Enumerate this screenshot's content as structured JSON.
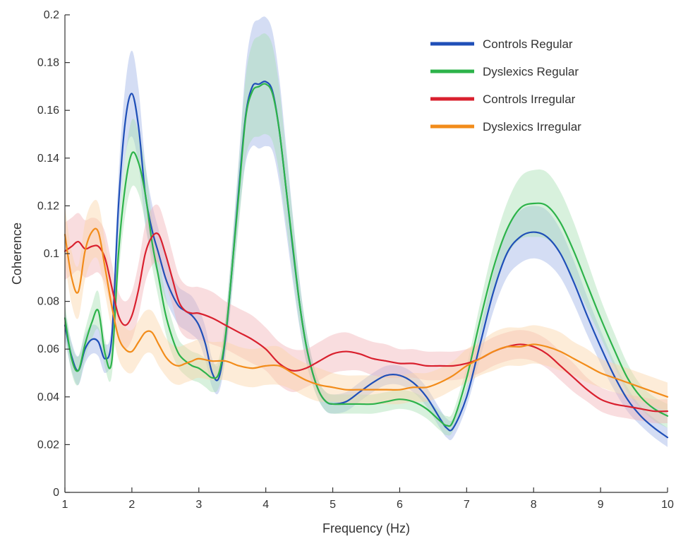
{
  "chart_data": {
    "type": "line",
    "title": "",
    "xlabel": "Frequency (Hz)",
    "ylabel": "Coherence",
    "xlim": [
      1,
      10
    ],
    "ylim": [
      0,
      0.2
    ],
    "xticks": [
      1,
      2,
      3,
      4,
      5,
      6,
      7,
      8,
      9,
      10
    ],
    "yticks": [
      0,
      0.02,
      0.04,
      0.06,
      0.08,
      0.1,
      0.12,
      0.14,
      0.16,
      0.18,
      0.2
    ],
    "xtick_labels": [
      "1",
      "2",
      "3",
      "4",
      "5",
      "6",
      "7",
      "8",
      "9",
      "10"
    ],
    "ytick_labels": [
      "0",
      "0.02",
      "0.04",
      "0.06",
      "0.08",
      "0.1",
      "0.12",
      "0.14",
      "0.16",
      "0.18",
      "0.2"
    ],
    "grid": false,
    "legend_position": "top-right",
    "series": [
      {
        "name": "Controls Regular",
        "color": "#1f4fb8",
        "band_color": "#9fb3e6",
        "x": [
          1.0,
          1.1,
          1.2,
          1.3,
          1.4,
          1.5,
          1.6,
          1.7,
          1.8,
          1.9,
          2.0,
          2.1,
          2.2,
          2.3,
          2.4,
          2.5,
          2.6,
          2.7,
          2.8,
          2.9,
          3.0,
          3.1,
          3.2,
          3.3,
          3.4,
          3.5,
          3.6,
          3.7,
          3.8,
          3.9,
          4.0,
          4.1,
          4.2,
          4.3,
          4.4,
          4.5,
          4.6,
          4.7,
          4.8,
          4.9,
          5.0,
          5.2,
          5.4,
          5.6,
          5.8,
          6.0,
          6.2,
          6.4,
          6.6,
          6.7,
          6.8,
          7.0,
          7.2,
          7.4,
          7.6,
          7.8,
          8.0,
          8.2,
          8.4,
          8.6,
          8.8,
          9.0,
          9.2,
          9.4,
          9.6,
          9.8,
          10.0
        ],
        "y": [
          0.07,
          0.057,
          0.051,
          0.06,
          0.064,
          0.063,
          0.056,
          0.065,
          0.12,
          0.155,
          0.167,
          0.153,
          0.125,
          0.11,
          0.1,
          0.09,
          0.083,
          0.078,
          0.076,
          0.074,
          0.07,
          0.062,
          0.05,
          0.048,
          0.065,
          0.095,
          0.128,
          0.158,
          0.17,
          0.171,
          0.172,
          0.168,
          0.152,
          0.128,
          0.103,
          0.08,
          0.062,
          0.05,
          0.042,
          0.038,
          0.037,
          0.038,
          0.042,
          0.046,
          0.049,
          0.049,
          0.046,
          0.04,
          0.031,
          0.027,
          0.027,
          0.04,
          0.062,
          0.084,
          0.1,
          0.107,
          0.109,
          0.107,
          0.1,
          0.088,
          0.074,
          0.061,
          0.049,
          0.039,
          0.032,
          0.027,
          0.023
        ],
        "err": [
          0.006,
          0.006,
          0.006,
          0.006,
          0.006,
          0.006,
          0.006,
          0.006,
          0.012,
          0.015,
          0.018,
          0.016,
          0.013,
          0.011,
          0.01,
          0.009,
          0.008,
          0.008,
          0.008,
          0.008,
          0.007,
          0.007,
          0.006,
          0.006,
          0.008,
          0.01,
          0.013,
          0.02,
          0.025,
          0.027,
          0.027,
          0.025,
          0.022,
          0.018,
          0.014,
          0.01,
          0.007,
          0.005,
          0.004,
          0.004,
          0.004,
          0.004,
          0.004,
          0.004,
          0.004,
          0.004,
          0.004,
          0.004,
          0.004,
          0.004,
          0.004,
          0.004,
          0.006,
          0.008,
          0.01,
          0.011,
          0.011,
          0.011,
          0.01,
          0.009,
          0.008,
          0.007,
          0.006,
          0.005,
          0.004,
          0.004,
          0.004
        ]
      },
      {
        "name": "Dyslexics Regular",
        "color": "#2db34a",
        "band_color": "#a8dfb4",
        "x": [
          1.0,
          1.1,
          1.2,
          1.3,
          1.4,
          1.5,
          1.6,
          1.7,
          1.8,
          1.9,
          2.0,
          2.1,
          2.2,
          2.3,
          2.4,
          2.5,
          2.6,
          2.7,
          2.8,
          2.9,
          3.0,
          3.1,
          3.2,
          3.3,
          3.4,
          3.5,
          3.6,
          3.7,
          3.8,
          3.9,
          4.0,
          4.1,
          4.2,
          4.3,
          4.4,
          4.5,
          4.6,
          4.7,
          4.8,
          4.9,
          5.0,
          5.2,
          5.4,
          5.6,
          5.8,
          6.0,
          6.2,
          6.4,
          6.6,
          6.7,
          6.8,
          7.0,
          7.2,
          7.4,
          7.6,
          7.8,
          8.0,
          8.2,
          8.4,
          8.6,
          8.8,
          9.0,
          9.2,
          9.4,
          9.6,
          9.8,
          10.0
        ],
        "y": [
          0.073,
          0.056,
          0.051,
          0.062,
          0.071,
          0.076,
          0.058,
          0.055,
          0.1,
          0.128,
          0.142,
          0.138,
          0.125,
          0.105,
          0.09,
          0.075,
          0.065,
          0.058,
          0.055,
          0.053,
          0.052,
          0.05,
          0.048,
          0.05,
          0.066,
          0.095,
          0.126,
          0.157,
          0.168,
          0.17,
          0.171,
          0.167,
          0.152,
          0.128,
          0.104,
          0.08,
          0.062,
          0.05,
          0.042,
          0.038,
          0.037,
          0.037,
          0.037,
          0.037,
          0.038,
          0.039,
          0.038,
          0.035,
          0.03,
          0.028,
          0.03,
          0.048,
          0.072,
          0.094,
          0.11,
          0.119,
          0.121,
          0.12,
          0.113,
          0.101,
          0.087,
          0.073,
          0.06,
          0.048,
          0.04,
          0.035,
          0.032
        ],
        "err": [
          0.006,
          0.006,
          0.006,
          0.006,
          0.007,
          0.008,
          0.006,
          0.006,
          0.01,
          0.012,
          0.014,
          0.013,
          0.012,
          0.01,
          0.009,
          0.008,
          0.007,
          0.006,
          0.006,
          0.006,
          0.006,
          0.006,
          0.006,
          0.006,
          0.008,
          0.01,
          0.013,
          0.017,
          0.02,
          0.021,
          0.021,
          0.02,
          0.018,
          0.015,
          0.012,
          0.009,
          0.007,
          0.005,
          0.004,
          0.004,
          0.004,
          0.004,
          0.004,
          0.004,
          0.004,
          0.004,
          0.004,
          0.004,
          0.004,
          0.004,
          0.004,
          0.005,
          0.007,
          0.009,
          0.011,
          0.013,
          0.014,
          0.014,
          0.013,
          0.012,
          0.01,
          0.008,
          0.007,
          0.006,
          0.005,
          0.005,
          0.005
        ]
      },
      {
        "name": "Controls Irregular",
        "color": "#d9202e",
        "band_color": "#f2b4b8",
        "x": [
          1.0,
          1.1,
          1.2,
          1.3,
          1.4,
          1.5,
          1.6,
          1.7,
          1.8,
          1.9,
          2.0,
          2.1,
          2.2,
          2.3,
          2.4,
          2.5,
          2.6,
          2.7,
          2.8,
          2.9,
          3.0,
          3.2,
          3.4,
          3.6,
          3.8,
          4.0,
          4.2,
          4.4,
          4.6,
          4.8,
          5.0,
          5.2,
          5.4,
          5.6,
          5.8,
          6.0,
          6.2,
          6.4,
          6.6,
          6.8,
          7.0,
          7.2,
          7.4,
          7.6,
          7.8,
          8.0,
          8.2,
          8.4,
          8.6,
          8.8,
          9.0,
          9.2,
          9.4,
          9.6,
          9.8,
          10.0
        ],
        "y": [
          0.101,
          0.103,
          0.105,
          0.102,
          0.103,
          0.103,
          0.098,
          0.086,
          0.074,
          0.07,
          0.074,
          0.085,
          0.1,
          0.107,
          0.108,
          0.1,
          0.09,
          0.08,
          0.076,
          0.075,
          0.075,
          0.073,
          0.07,
          0.067,
          0.064,
          0.06,
          0.054,
          0.051,
          0.052,
          0.055,
          0.058,
          0.059,
          0.058,
          0.056,
          0.055,
          0.054,
          0.054,
          0.053,
          0.053,
          0.053,
          0.054,
          0.056,
          0.059,
          0.061,
          0.062,
          0.061,
          0.058,
          0.053,
          0.048,
          0.043,
          0.039,
          0.037,
          0.036,
          0.035,
          0.034,
          0.034
        ],
        "err": [
          0.012,
          0.012,
          0.012,
          0.012,
          0.012,
          0.011,
          0.011,
          0.01,
          0.01,
          0.01,
          0.01,
          0.011,
          0.012,
          0.012,
          0.012,
          0.012,
          0.011,
          0.011,
          0.011,
          0.011,
          0.011,
          0.011,
          0.01,
          0.01,
          0.01,
          0.009,
          0.009,
          0.009,
          0.008,
          0.008,
          0.008,
          0.008,
          0.007,
          0.007,
          0.007,
          0.006,
          0.006,
          0.006,
          0.006,
          0.006,
          0.006,
          0.006,
          0.006,
          0.006,
          0.006,
          0.006,
          0.006,
          0.006,
          0.006,
          0.005,
          0.005,
          0.005,
          0.005,
          0.005,
          0.005,
          0.005
        ]
      },
      {
        "name": "Dyslexics Irregular",
        "color": "#f28c1a",
        "band_color": "#fbd5a8",
        "x": [
          1.0,
          1.1,
          1.2,
          1.3,
          1.4,
          1.5,
          1.6,
          1.7,
          1.8,
          1.9,
          2.0,
          2.1,
          2.2,
          2.3,
          2.4,
          2.5,
          2.6,
          2.7,
          2.8,
          2.9,
          3.0,
          3.2,
          3.4,
          3.6,
          3.8,
          4.0,
          4.2,
          4.4,
          4.6,
          4.8,
          5.0,
          5.2,
          5.4,
          5.6,
          5.8,
          6.0,
          6.2,
          6.4,
          6.6,
          6.8,
          7.0,
          7.2,
          7.4,
          7.6,
          7.8,
          8.0,
          8.2,
          8.4,
          8.6,
          8.8,
          9.0,
          9.2,
          9.4,
          9.6,
          9.8,
          10.0
        ],
        "y": [
          0.108,
          0.09,
          0.084,
          0.101,
          0.109,
          0.109,
          0.094,
          0.078,
          0.065,
          0.06,
          0.059,
          0.063,
          0.067,
          0.067,
          0.062,
          0.057,
          0.054,
          0.053,
          0.054,
          0.055,
          0.056,
          0.055,
          0.055,
          0.053,
          0.052,
          0.053,
          0.053,
          0.05,
          0.047,
          0.045,
          0.044,
          0.043,
          0.043,
          0.043,
          0.043,
          0.043,
          0.044,
          0.044,
          0.046,
          0.049,
          0.053,
          0.056,
          0.059,
          0.061,
          0.061,
          0.062,
          0.061,
          0.059,
          0.056,
          0.053,
          0.05,
          0.048,
          0.046,
          0.044,
          0.042,
          0.04
        ],
        "err": [
          0.012,
          0.011,
          0.011,
          0.012,
          0.012,
          0.012,
          0.011,
          0.01,
          0.009,
          0.009,
          0.009,
          0.009,
          0.009,
          0.009,
          0.009,
          0.008,
          0.008,
          0.008,
          0.008,
          0.008,
          0.008,
          0.008,
          0.008,
          0.008,
          0.008,
          0.008,
          0.008,
          0.007,
          0.007,
          0.007,
          0.006,
          0.006,
          0.006,
          0.006,
          0.006,
          0.006,
          0.006,
          0.006,
          0.006,
          0.006,
          0.007,
          0.007,
          0.008,
          0.008,
          0.008,
          0.008,
          0.008,
          0.008,
          0.007,
          0.007,
          0.006,
          0.006,
          0.006,
          0.006,
          0.006,
          0.006
        ]
      }
    ]
  }
}
